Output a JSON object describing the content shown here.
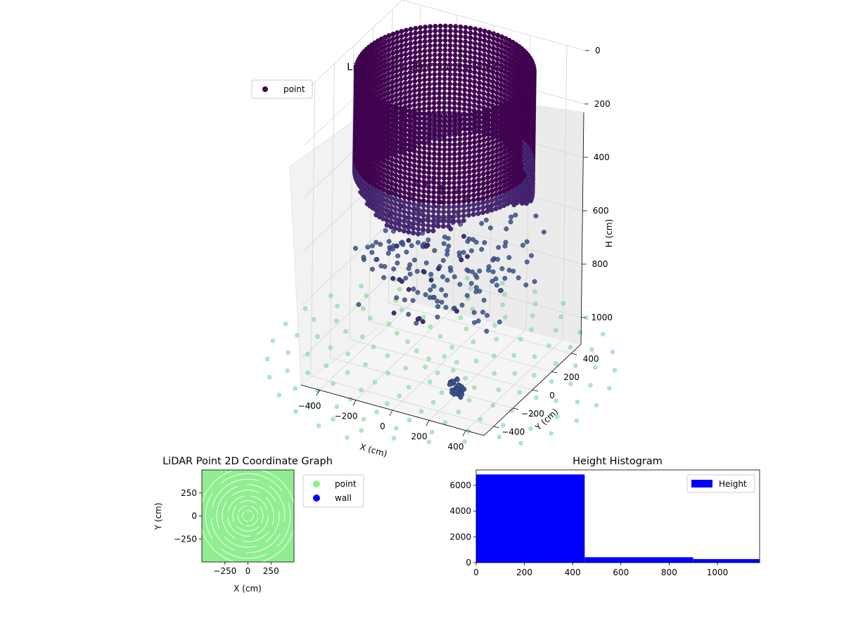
{
  "chart_data": [
    {
      "type": "scatter",
      "title": "LiDAR Point 3D Coordinate Graph",
      "xlabel": "X (cm)",
      "ylabel": "Y (cm)",
      "zlabel": "H (cm)",
      "x_ticks": [
        -400,
        -200,
        0,
        200,
        400
      ],
      "y_ticks": [
        -400,
        -200,
        0,
        200,
        400
      ],
      "z_ticks": [
        0,
        200,
        400,
        600,
        800,
        1000
      ],
      "xlim": [
        -500,
        500
      ],
      "ylim": [
        -500,
        500
      ],
      "zlim": [
        0,
        1100
      ],
      "z_inverted": true,
      "legend": {
        "entries": [
          "point"
        ],
        "placement": "upper-left"
      },
      "colors": {
        "wall": "#440154",
        "floor_points": "#6edb8f",
        "mid_points": "#3b528b"
      },
      "series": [
        {
          "name": "point",
          "description_values": "ring of radius ~430 cm spanning heights 0–450 cm"
        }
      ]
    },
    {
      "type": "scatter",
      "title": "LiDAR Point 2D Coordinate Graph",
      "xlabel": "X (cm)",
      "ylabel": "Y (cm)",
      "x_ticks": [
        -250,
        0,
        250
      ],
      "y_ticks": [
        -250,
        0,
        250
      ],
      "xlim": [
        -500,
        500
      ],
      "ylim": [
        -500,
        500
      ],
      "legend": {
        "entries": [
          "point",
          "wall"
        ],
        "placement": "right"
      },
      "colors": {
        "point": "#90ee90",
        "wall": "#0000ff"
      }
    },
    {
      "type": "bar",
      "title": "Height Histogram",
      "xlabel": "",
      "ylabel": "",
      "x_ticks": [
        0,
        200,
        400,
        600,
        800,
        1000
      ],
      "y_ticks": [
        0,
        2000,
        4000,
        6000
      ],
      "xlim": [
        0,
        1175
      ],
      "ylim": [
        0,
        7200
      ],
      "legend": {
        "entries": [
          "Height"
        ],
        "placement": "upper-right"
      },
      "color": "#0000ff",
      "bins": [
        {
          "start": 0,
          "end": 450,
          "count": 6850
        },
        {
          "start": 450,
          "end": 900,
          "count": 420
        },
        {
          "start": 900,
          "end": 1175,
          "count": 280
        }
      ]
    }
  ]
}
